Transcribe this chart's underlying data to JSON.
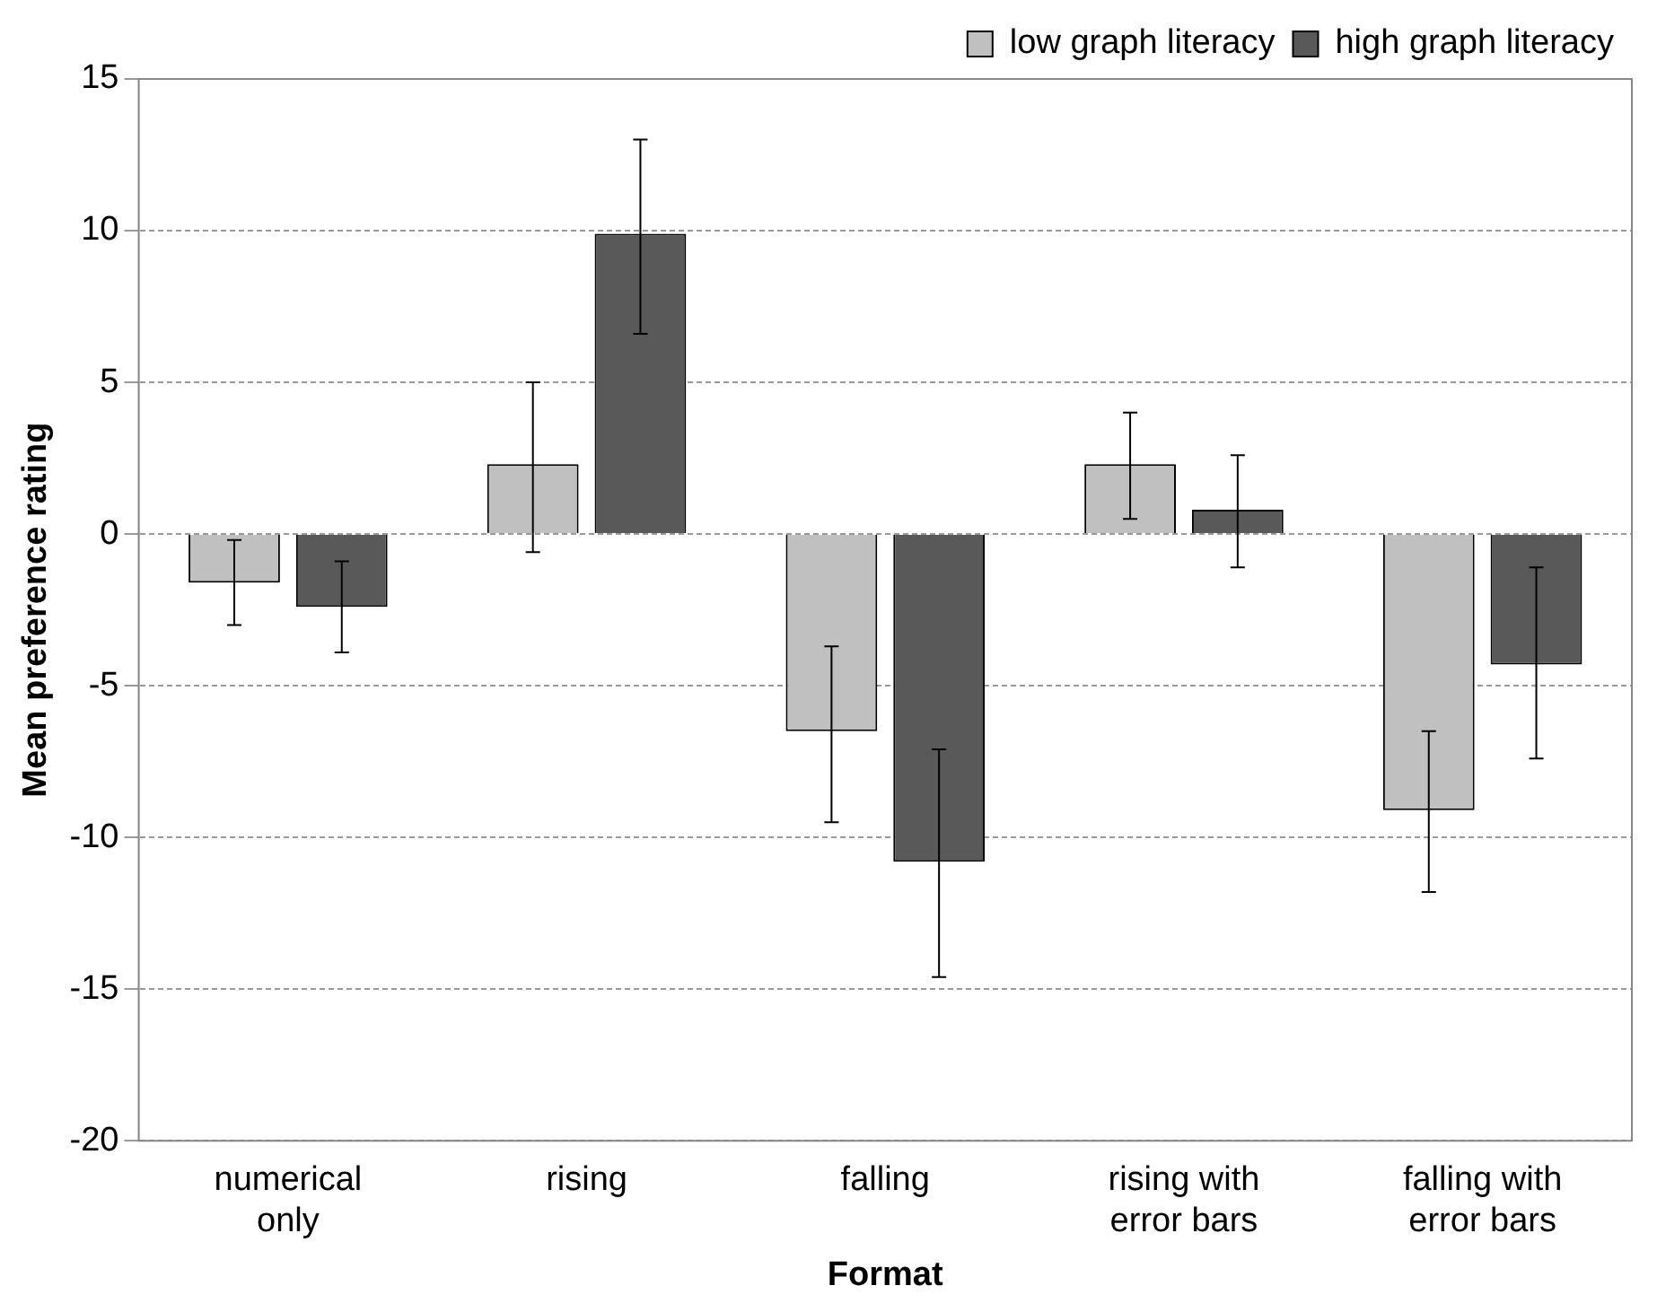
{
  "chart_data": {
    "type": "bar",
    "xlabel": "Format",
    "ylabel": "Mean preference rating",
    "categories": [
      "numerical only",
      "rising",
      "falling",
      "rising with error bars",
      "falling with error bars"
    ],
    "series": [
      {
        "name": "low graph literacy",
        "color": "#c0c0c0",
        "values": [
          -1.6,
          2.3,
          -6.5,
          2.3,
          -9.1
        ],
        "errors": [
          [
            -3.0,
            -0.2
          ],
          [
            -0.6,
            5.0
          ],
          [
            -9.5,
            -3.7
          ],
          [
            0.5,
            4.0
          ],
          [
            -11.8,
            -6.5
          ]
        ]
      },
      {
        "name": "high graph literacy",
        "color": "#595959",
        "values": [
          -2.4,
          9.9,
          -10.8,
          0.8,
          -4.3
        ],
        "errors": [
          [
            -3.9,
            -0.9
          ],
          [
            6.6,
            13.0
          ],
          [
            -14.6,
            -7.1
          ],
          [
            -1.1,
            2.6
          ],
          [
            -7.4,
            -1.1
          ]
        ]
      }
    ],
    "ylim": [
      -20,
      15
    ],
    "yticks": [
      -20,
      -15,
      -10,
      -5,
      0,
      5,
      10,
      15
    ],
    "grid": "y",
    "legend": "top right"
  }
}
